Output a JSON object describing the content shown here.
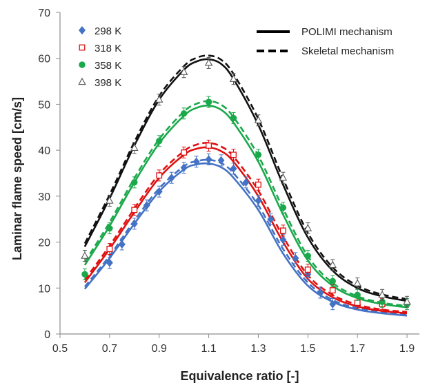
{
  "chart_data": {
    "type": "line",
    "title": "",
    "xlabel": "Equivalence ratio [-]",
    "ylabel": "Laminar flame speed [cm/s]",
    "xlim": [
      0.5,
      1.95
    ],
    "ylim": [
      0,
      70
    ],
    "xticks": [
      "0.5",
      "0.7",
      "0.9",
      "1.1",
      "1.3",
      "1.5",
      "1.7",
      "1.9"
    ],
    "yticks": [
      "0",
      "10",
      "20",
      "30",
      "40",
      "50",
      "60",
      "70"
    ],
    "grid": false,
    "legend_placement": "top",
    "experimental_series": [
      {
        "name": "298 K",
        "color": "#4472c4",
        "marker": "diamond",
        "x": [
          0.7,
          0.75,
          0.8,
          0.85,
          0.9,
          0.95,
          1.0,
          1.05,
          1.1,
          1.15,
          1.2,
          1.25,
          1.3,
          1.35,
          1.4,
          1.45,
          1.5,
          1.55,
          1.6
        ],
        "y": [
          15.5,
          19.5,
          24.0,
          28.0,
          31.0,
          34.0,
          36.2,
          37.5,
          38.0,
          37.8,
          36.0,
          33.0,
          29.0,
          25.0,
          20.5,
          16.5,
          13.0,
          9.0,
          6.5
        ]
      },
      {
        "name": "318 K",
        "color": "#e01010",
        "marker": "open-square",
        "x": [
          0.7,
          0.8,
          0.9,
          1.0,
          1.1,
          1.2,
          1.3,
          1.4,
          1.5,
          1.6,
          1.7,
          1.8
        ],
        "y": [
          18.5,
          27.0,
          34.5,
          39.5,
          41.0,
          39.0,
          32.5,
          22.5,
          14.0,
          9.5,
          6.8,
          6.5
        ]
      },
      {
        "name": "358 K",
        "color": "#1aa84a",
        "marker": "circle",
        "x": [
          0.6,
          0.7,
          0.8,
          0.9,
          1.0,
          1.1,
          1.2,
          1.3,
          1.4,
          1.5,
          1.6,
          1.7,
          1.8,
          1.9
        ],
        "y": [
          13.0,
          23.0,
          33.0,
          42.0,
          48.0,
          50.5,
          47.0,
          39.0,
          27.5,
          17.0,
          11.5,
          8.5,
          7.0,
          6.5
        ]
      },
      {
        "name": "398 K",
        "color": "#555555",
        "marker": "open-triangle",
        "x": [
          0.6,
          0.7,
          0.8,
          0.9,
          1.0,
          1.1,
          1.2,
          1.3,
          1.4,
          1.5,
          1.6,
          1.7,
          1.8,
          1.9
        ],
        "y": [
          17.0,
          29.0,
          40.5,
          51.0,
          57.0,
          59.0,
          55.5,
          46.5,
          34.0,
          23.0,
          15.0,
          11.0,
          8.5,
          7.0
        ]
      }
    ],
    "model_series": [
      {
        "temperature": "298 K",
        "color": "#4472c4",
        "x": [
          0.6,
          0.7,
          0.8,
          0.9,
          1.0,
          1.05,
          1.1,
          1.15,
          1.2,
          1.3,
          1.4,
          1.5,
          1.6,
          1.7,
          1.8,
          1.9
        ],
        "solid_y": [
          9.8,
          16.5,
          24.0,
          31.0,
          35.8,
          36.9,
          37.1,
          36.3,
          34.0,
          27.0,
          17.5,
          10.5,
          7.0,
          5.3,
          4.5,
          4.0
        ],
        "dashed_y": [
          10.3,
          17.0,
          24.7,
          31.7,
          36.5,
          37.6,
          37.9,
          37.2,
          35.0,
          28.0,
          18.5,
          11.2,
          7.4,
          5.6,
          4.8,
          4.3
        ]
      },
      {
        "temperature": "318 K",
        "color": "#e01010",
        "x": [
          0.6,
          0.7,
          0.8,
          0.9,
          1.0,
          1.05,
          1.1,
          1.15,
          1.2,
          1.3,
          1.4,
          1.5,
          1.6,
          1.7,
          1.8,
          1.9
        ],
        "solid_y": [
          11.2,
          18.5,
          26.5,
          34.0,
          39.0,
          40.3,
          40.6,
          39.8,
          37.5,
          30.0,
          20.0,
          12.0,
          8.0,
          6.0,
          5.0,
          4.5
        ],
        "dashed_y": [
          11.8,
          19.2,
          27.3,
          34.8,
          39.8,
          41.2,
          41.6,
          40.8,
          38.6,
          31.2,
          21.2,
          12.8,
          8.5,
          6.4,
          5.3,
          4.8
        ]
      },
      {
        "temperature": "358 K",
        "color": "#1aa84a",
        "x": [
          0.6,
          0.7,
          0.8,
          0.9,
          1.0,
          1.05,
          1.1,
          1.15,
          1.2,
          1.3,
          1.4,
          1.5,
          1.6,
          1.7,
          1.8,
          1.9
        ],
        "solid_y": [
          15.0,
          23.5,
          33.0,
          41.5,
          47.5,
          49.2,
          49.7,
          48.8,
          46.0,
          37.5,
          26.0,
          16.0,
          10.5,
          7.8,
          6.5,
          5.8
        ],
        "dashed_y": [
          15.7,
          24.3,
          33.9,
          42.4,
          48.4,
          50.1,
          50.7,
          49.9,
          47.2,
          38.8,
          27.3,
          16.9,
          11.1,
          8.2,
          6.8,
          6.1
        ]
      },
      {
        "temperature": "398 K",
        "color": "#111111",
        "x": [
          0.6,
          0.7,
          0.8,
          0.9,
          1.0,
          1.05,
          1.1,
          1.15,
          1.2,
          1.3,
          1.4,
          1.5,
          1.6,
          1.7,
          1.8,
          1.9
        ],
        "solid_y": [
          19.0,
          29.5,
          41.0,
          51.0,
          57.5,
          59.3,
          59.8,
          58.8,
          55.5,
          45.5,
          32.5,
          21.0,
          13.8,
          10.0,
          8.2,
          7.2
        ],
        "dashed_y": [
          19.7,
          30.3,
          41.8,
          51.8,
          58.3,
          60.1,
          60.6,
          59.7,
          56.6,
          46.8,
          33.8,
          22.0,
          14.5,
          10.5,
          8.6,
          7.6
        ]
      }
    ],
    "error_bar_half_height": 1.2,
    "line_legend": [
      {
        "label": "POLIMI mechanism",
        "style": "solid"
      },
      {
        "label": "Skeletal mechanism",
        "style": "dashed"
      }
    ]
  }
}
